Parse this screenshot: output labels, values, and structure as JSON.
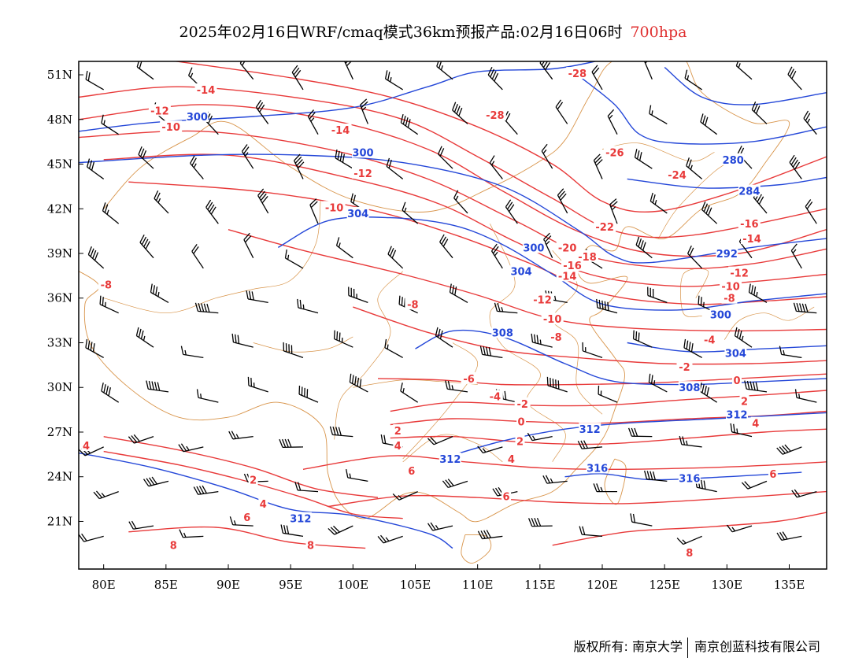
{
  "title": {
    "main": "2025年02月16日WRF/cmaq模式36km预报产品:02月16日06时",
    "level": "700hpa",
    "level_color": "#e03030"
  },
  "axes": {
    "x_ticks": [
      "80E",
      "85E",
      "90E",
      "95E",
      "100E",
      "105E",
      "110E",
      "115E",
      "120E",
      "125E",
      "130E",
      "135E"
    ],
    "y_ticks": [
      "51N",
      "48N",
      "45N",
      "42N",
      "39N",
      "36N",
      "33N",
      "30N",
      "27N",
      "24N",
      "21N"
    ],
    "lon_range": [
      78,
      138
    ],
    "lat_range": [
      17.8,
      51.9
    ]
  },
  "colors": {
    "temperature": "#e83a3a",
    "geopotential": "#2447d8",
    "boundary": "#d8944a",
    "wind": "#000000"
  },
  "geopotential_labels": [
    {
      "text": "300",
      "lon": 87.5,
      "lat": 48.2
    },
    {
      "text": "300",
      "lon": 100.8,
      "lat": 45.8
    },
    {
      "text": "304",
      "lon": 100.4,
      "lat": 41.7
    },
    {
      "text": "300",
      "lon": 114.5,
      "lat": 39.4
    },
    {
      "text": "304",
      "lon": 113.5,
      "lat": 37.8
    },
    {
      "text": "308",
      "lon": 112.0,
      "lat": 33.7
    },
    {
      "text": "280",
      "lon": 130.5,
      "lat": 45.3
    },
    {
      "text": "284",
      "lon": 131.8,
      "lat": 43.2
    },
    {
      "text": "292",
      "lon": 130.0,
      "lat": 39.0
    },
    {
      "text": "300",
      "lon": 129.5,
      "lat": 34.9
    },
    {
      "text": "304",
      "lon": 130.7,
      "lat": 32.3
    },
    {
      "text": "308",
      "lon": 127.0,
      "lat": 30.0
    },
    {
      "text": "312",
      "lon": 130.8,
      "lat": 28.2
    },
    {
      "text": "312",
      "lon": 119.0,
      "lat": 27.2
    },
    {
      "text": "312",
      "lon": 107.8,
      "lat": 25.2
    },
    {
      "text": "316",
      "lon": 119.6,
      "lat": 24.6
    },
    {
      "text": "316",
      "lon": 127.0,
      "lat": 23.9
    },
    {
      "text": "312",
      "lon": 95.8,
      "lat": 21.2
    }
  ],
  "temperature_labels": [
    {
      "text": "-14",
      "lon": 88.2,
      "lat": 50.0
    },
    {
      "text": "-12",
      "lon": 84.5,
      "lat": 48.6
    },
    {
      "text": "-10",
      "lon": 85.4,
      "lat": 47.5
    },
    {
      "text": "-14",
      "lon": 99.0,
      "lat": 47.3
    },
    {
      "text": "-12",
      "lon": 100.8,
      "lat": 44.4
    },
    {
      "text": "-10",
      "lon": 98.5,
      "lat": 42.1
    },
    {
      "text": "-8",
      "lon": 80.2,
      "lat": 36.9
    },
    {
      "text": "-8",
      "lon": 104.8,
      "lat": 35.6
    },
    {
      "text": "-28",
      "lon": 118.0,
      "lat": 51.1
    },
    {
      "text": "-28",
      "lon": 111.4,
      "lat": 48.3
    },
    {
      "text": "-26",
      "lon": 121.0,
      "lat": 45.8
    },
    {
      "text": "-24",
      "lon": 126.0,
      "lat": 44.3
    },
    {
      "text": "-22",
      "lon": 120.2,
      "lat": 40.8
    },
    {
      "text": "-20",
      "lon": 117.2,
      "lat": 39.4
    },
    {
      "text": "-18",
      "lon": 118.8,
      "lat": 38.8
    },
    {
      "text": "-16",
      "lon": 117.6,
      "lat": 38.2
    },
    {
      "text": "-14",
      "lon": 117.2,
      "lat": 37.5
    },
    {
      "text": "-12",
      "lon": 115.2,
      "lat": 35.9
    },
    {
      "text": "-10",
      "lon": 116.0,
      "lat": 34.6
    },
    {
      "text": "-8",
      "lon": 116.3,
      "lat": 33.4
    },
    {
      "text": "-6",
      "lon": 109.3,
      "lat": 30.6
    },
    {
      "text": "-4",
      "lon": 111.4,
      "lat": 29.4
    },
    {
      "text": "-2",
      "lon": 113.6,
      "lat": 28.9
    },
    {
      "text": "0",
      "lon": 113.5,
      "lat": 27.7
    },
    {
      "text": "2",
      "lon": 113.4,
      "lat": 26.4
    },
    {
      "text": "4",
      "lon": 112.7,
      "lat": 25.2
    },
    {
      "text": "6",
      "lon": 112.3,
      "lat": 22.7
    },
    {
      "text": "-16",
      "lon": 131.8,
      "lat": 41.0
    },
    {
      "text": "-14",
      "lon": 132.0,
      "lat": 40.0
    },
    {
      "text": "-12",
      "lon": 131.0,
      "lat": 37.7
    },
    {
      "text": "-10",
      "lon": 130.3,
      "lat": 36.8
    },
    {
      "text": "-8",
      "lon": 130.2,
      "lat": 36.0
    },
    {
      "text": "-4",
      "lon": 128.6,
      "lat": 33.2
    },
    {
      "text": "-2",
      "lon": 126.6,
      "lat": 31.4
    },
    {
      "text": "0",
      "lon": 130.8,
      "lat": 30.5
    },
    {
      "text": "2",
      "lon": 131.4,
      "lat": 29.1
    },
    {
      "text": "4",
      "lon": 132.3,
      "lat": 27.6
    },
    {
      "text": "6",
      "lon": 133.7,
      "lat": 24.2
    },
    {
      "text": "8",
      "lon": 127.0,
      "lat": 18.9
    },
    {
      "text": "4",
      "lon": 78.6,
      "lat": 26.1
    },
    {
      "text": "2",
      "lon": 92.0,
      "lat": 23.8
    },
    {
      "text": "4",
      "lon": 92.8,
      "lat": 22.2
    },
    {
      "text": "6",
      "lon": 91.5,
      "lat": 21.3
    },
    {
      "text": "8",
      "lon": 85.6,
      "lat": 19.4
    },
    {
      "text": "8",
      "lon": 96.6,
      "lat": 19.4
    },
    {
      "text": "2",
      "lon": 103.6,
      "lat": 27.1
    },
    {
      "text": "4",
      "lon": 103.6,
      "lat": 26.1
    },
    {
      "text": "6",
      "lon": 104.7,
      "lat": 24.4
    }
  ],
  "footer": {
    "copyright": "版权所有: 南京大学",
    "company": "南京创蓝科技有限公司"
  }
}
